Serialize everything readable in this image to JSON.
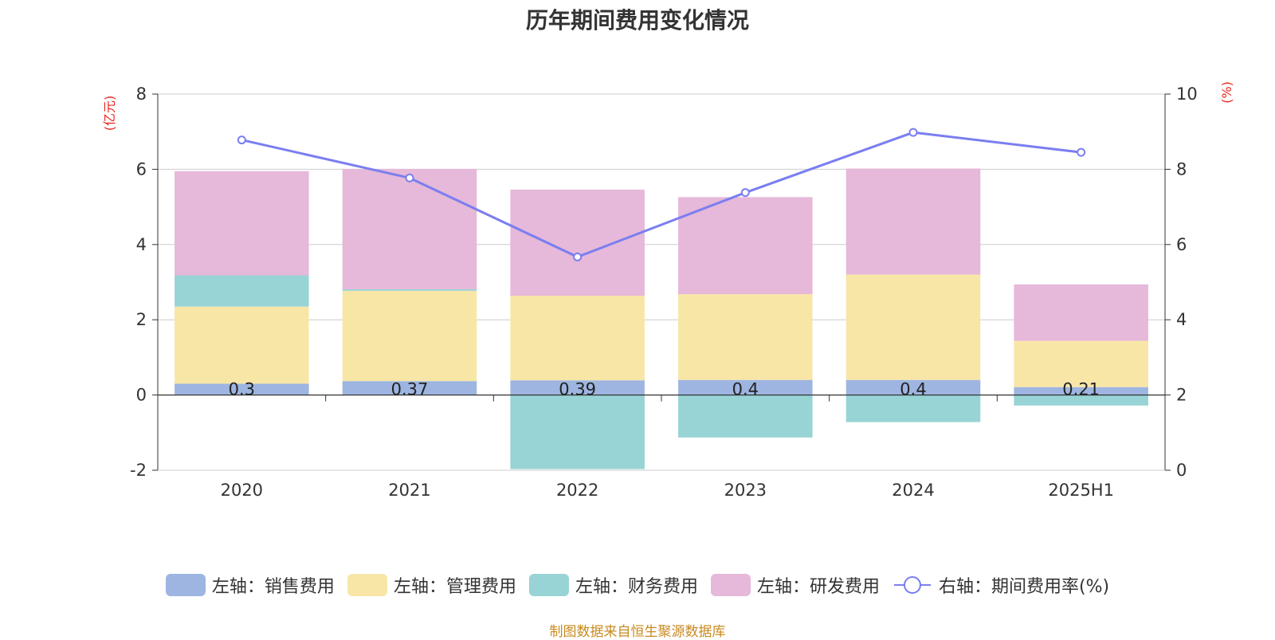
{
  "chart_data": {
    "type": "bar",
    "title": "历年期间费用变化情况",
    "categories": [
      "2020",
      "2021",
      "2022",
      "2023",
      "2024",
      "2025H1"
    ],
    "left_axis": {
      "unit_label": "(亿元)",
      "ylim": [
        -2,
        8
      ],
      "ticks": [
        -2,
        0,
        2,
        4,
        6,
        8
      ]
    },
    "right_axis": {
      "unit_label": "(%)",
      "ylim": [
        0,
        10
      ],
      "ticks": [
        0,
        2,
        4,
        6,
        8,
        10
      ]
    },
    "stacked": true,
    "grid": true,
    "legend_position": "bottom",
    "series": [
      {
        "name": "左轴：销售费用",
        "axis": "left",
        "type": "bar",
        "color": "#9db5e0",
        "values": [
          0.3,
          0.37,
          0.39,
          0.4,
          0.4,
          0.21
        ],
        "data_labels": [
          "0.3",
          "0.37",
          "0.39",
          "0.4",
          "0.4",
          "0.21"
        ]
      },
      {
        "name": "左轴：管理费用",
        "axis": "left",
        "type": "bar",
        "color": "#f8e6a7",
        "values": [
          2.05,
          2.4,
          2.25,
          2.28,
          2.8,
          1.23
        ]
      },
      {
        "name": "左轴：财务费用",
        "axis": "left",
        "type": "bar",
        "color": "#98d4d6",
        "values": [
          0.83,
          0.04,
          -1.97,
          -1.13,
          -0.72,
          -0.28
        ]
      },
      {
        "name": "左轴：研发费用",
        "axis": "left",
        "type": "bar",
        "color": "#e6b8d9",
        "values": [
          2.77,
          3.2,
          2.82,
          2.58,
          2.82,
          1.5
        ]
      },
      {
        "name": "右轴：期间费用率(%)",
        "axis": "right",
        "type": "line",
        "color": "#7a7ef0",
        "values": [
          8.78,
          7.77,
          5.67,
          7.38,
          8.98,
          8.45
        ]
      }
    ]
  },
  "source_note": "制图数据来自恒生聚源数据库"
}
